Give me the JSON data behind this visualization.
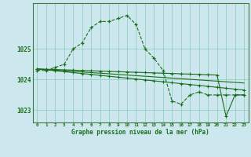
{
  "xlabel": "Graphe pression niveau de la mer (hPa)",
  "background_color": "#cce8ee",
  "grid_color": "#88ccbb",
  "line_color": "#1a6e1a",
  "hours": [
    0,
    1,
    2,
    3,
    4,
    5,
    6,
    7,
    8,
    9,
    10,
    11,
    12,
    13,
    14,
    15,
    16,
    17,
    18,
    19,
    20,
    21,
    22,
    23
  ],
  "series1": [
    1024.3,
    1024.3,
    1024.4,
    1024.5,
    1025.0,
    1025.2,
    1025.7,
    1025.9,
    1025.9,
    1026.0,
    1026.1,
    1025.8,
    1025.0,
    1024.7,
    1024.3,
    1023.3,
    1023.2,
    1023.5,
    1023.6,
    1023.5,
    1023.5,
    1023.5,
    1023.5,
    1023.5
  ],
  "series2": [
    1024.35,
    1024.32,
    1024.29,
    1024.26,
    1024.23,
    1024.2,
    1024.17,
    1024.14,
    1024.11,
    1024.08,
    1024.05,
    1024.02,
    1023.99,
    1023.96,
    1023.93,
    1023.9,
    1023.87,
    1023.84,
    1023.81,
    1023.78,
    1023.75,
    1023.72,
    1023.69,
    1023.66
  ],
  "series3": [
    1024.35,
    1024.33,
    1024.31,
    1024.29,
    1024.27,
    1024.25,
    1024.23,
    1024.21,
    1024.19,
    1024.17,
    1024.15,
    1024.13,
    1024.11,
    1024.09,
    1024.07,
    1024.05,
    1024.03,
    1024.01,
    1023.99,
    1023.97,
    1023.95,
    1023.93,
    1023.91,
    1023.89
  ],
  "series4": [
    1024.35,
    1024.34,
    1024.33,
    1024.32,
    1024.31,
    1024.3,
    1024.29,
    1024.28,
    1024.27,
    1024.26,
    1024.25,
    1024.24,
    1024.23,
    1024.22,
    1024.21,
    1024.2,
    1024.19,
    1024.18,
    1024.17,
    1024.16,
    1024.15,
    1022.8,
    1023.5,
    1023.5
  ],
  "ylim": [
    1022.6,
    1026.5
  ],
  "yticks": [
    1023,
    1024,
    1025
  ],
  "xticks": [
    0,
    1,
    2,
    3,
    4,
    5,
    6,
    7,
    8,
    9,
    10,
    11,
    12,
    13,
    14,
    15,
    16,
    17,
    18,
    19,
    20,
    21,
    22,
    23
  ]
}
